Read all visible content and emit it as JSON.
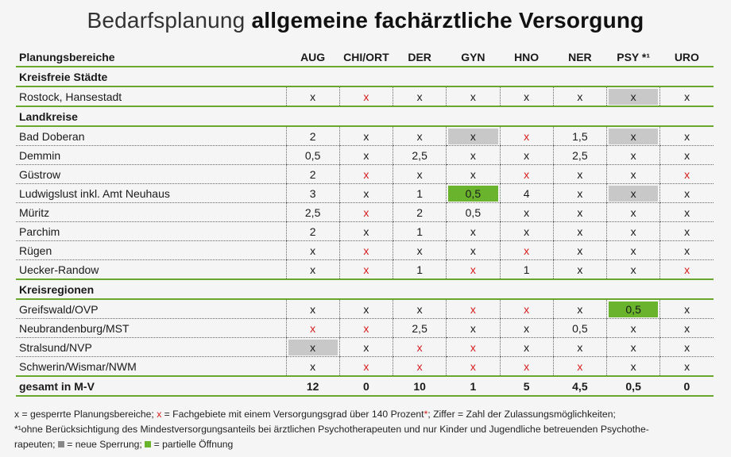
{
  "title": {
    "light": "Bedarfsplanung",
    "bold": "allgemeine fachärztliche Versorgung"
  },
  "header": {
    "first": "Planungsbereiche",
    "columns": [
      "AUG",
      "CHI/ORT",
      "DER",
      "GYN",
      "HNO",
      "NER",
      "PSY *¹",
      "URO"
    ]
  },
  "colors": {
    "green_accent": "#6aa82d",
    "highlight_green": "#6ab42d",
    "highlight_grey": "#c8c8c8",
    "red": "#d81b1b"
  },
  "sections": [
    {
      "title": "Kreisfreie Städte",
      "rows": [
        {
          "name": "Rostock, Hansestadt",
          "cells": [
            {
              "v": "x",
              "s": ""
            },
            {
              "v": "x",
              "s": "red"
            },
            {
              "v": "x",
              "s": ""
            },
            {
              "v": "x",
              "s": ""
            },
            {
              "v": "x",
              "s": ""
            },
            {
              "v": "x",
              "s": ""
            },
            {
              "v": "x",
              "s": "grey"
            },
            {
              "v": "x",
              "s": ""
            }
          ]
        }
      ]
    },
    {
      "title": "Landkreise",
      "rows": [
        {
          "name": "Bad Doberan",
          "cells": [
            {
              "v": "2",
              "s": ""
            },
            {
              "v": "x",
              "s": ""
            },
            {
              "v": "x",
              "s": ""
            },
            {
              "v": "x",
              "s": "grey"
            },
            {
              "v": "x",
              "s": "red"
            },
            {
              "v": "1,5",
              "s": ""
            },
            {
              "v": "x",
              "s": "grey"
            },
            {
              "v": "x",
              "s": ""
            }
          ]
        },
        {
          "name": "Demmin",
          "cells": [
            {
              "v": "0,5",
              "s": ""
            },
            {
              "v": "x",
              "s": ""
            },
            {
              "v": "2,5",
              "s": ""
            },
            {
              "v": "x",
              "s": ""
            },
            {
              "v": "x",
              "s": ""
            },
            {
              "v": "2,5",
              "s": ""
            },
            {
              "v": "x",
              "s": ""
            },
            {
              "v": "x",
              "s": ""
            }
          ]
        },
        {
          "name": "Güstrow",
          "cells": [
            {
              "v": "2",
              "s": ""
            },
            {
              "v": "x",
              "s": "red"
            },
            {
              "v": "x",
              "s": ""
            },
            {
              "v": "x",
              "s": ""
            },
            {
              "v": "x",
              "s": "red"
            },
            {
              "v": "x",
              "s": ""
            },
            {
              "v": "x",
              "s": ""
            },
            {
              "v": "x",
              "s": "red"
            }
          ]
        },
        {
          "name": "Ludwigslust inkl. Amt Neuhaus",
          "cells": [
            {
              "v": "3",
              "s": ""
            },
            {
              "v": "x",
              "s": ""
            },
            {
              "v": "1",
              "s": ""
            },
            {
              "v": "0,5",
              "s": "green"
            },
            {
              "v": "4",
              "s": ""
            },
            {
              "v": "x",
              "s": ""
            },
            {
              "v": "x",
              "s": "grey"
            },
            {
              "v": "x",
              "s": ""
            }
          ]
        },
        {
          "name": "Müritz",
          "cells": [
            {
              "v": "2,5",
              "s": ""
            },
            {
              "v": "x",
              "s": "red"
            },
            {
              "v": "2",
              "s": ""
            },
            {
              "v": "0,5",
              "s": ""
            },
            {
              "v": "x",
              "s": ""
            },
            {
              "v": "x",
              "s": ""
            },
            {
              "v": "x",
              "s": ""
            },
            {
              "v": "x",
              "s": ""
            }
          ]
        },
        {
          "name": "Parchim",
          "cells": [
            {
              "v": "2",
              "s": ""
            },
            {
              "v": "x",
              "s": ""
            },
            {
              "v": "1",
              "s": ""
            },
            {
              "v": "x",
              "s": ""
            },
            {
              "v": "x",
              "s": ""
            },
            {
              "v": "x",
              "s": ""
            },
            {
              "v": "x",
              "s": ""
            },
            {
              "v": "x",
              "s": ""
            }
          ]
        },
        {
          "name": "Rügen",
          "cells": [
            {
              "v": "x",
              "s": ""
            },
            {
              "v": "x",
              "s": "red"
            },
            {
              "v": "x",
              "s": ""
            },
            {
              "v": "x",
              "s": ""
            },
            {
              "v": "x",
              "s": "red"
            },
            {
              "v": "x",
              "s": ""
            },
            {
              "v": "x",
              "s": ""
            },
            {
              "v": "x",
              "s": ""
            }
          ]
        },
        {
          "name": "Uecker-Randow",
          "cells": [
            {
              "v": "x",
              "s": ""
            },
            {
              "v": "x",
              "s": "red"
            },
            {
              "v": "1",
              "s": ""
            },
            {
              "v": "x",
              "s": "red"
            },
            {
              "v": "1",
              "s": ""
            },
            {
              "v": "x",
              "s": ""
            },
            {
              "v": "x",
              "s": ""
            },
            {
              "v": "x",
              "s": "red"
            }
          ]
        }
      ]
    },
    {
      "title": "Kreisregionen",
      "rows": [
        {
          "name": "Greifswald/OVP",
          "cells": [
            {
              "v": "x",
              "s": ""
            },
            {
              "v": "x",
              "s": ""
            },
            {
              "v": "x",
              "s": ""
            },
            {
              "v": "x",
              "s": "red"
            },
            {
              "v": "x",
              "s": "red"
            },
            {
              "v": "x",
              "s": ""
            },
            {
              "v": "0,5",
              "s": "green"
            },
            {
              "v": "x",
              "s": ""
            }
          ]
        },
        {
          "name": "Neubrandenburg/MST",
          "cells": [
            {
              "v": "x",
              "s": "red"
            },
            {
              "v": "x",
              "s": "red"
            },
            {
              "v": "2,5",
              "s": ""
            },
            {
              "v": "x",
              "s": ""
            },
            {
              "v": "x",
              "s": ""
            },
            {
              "v": "0,5",
              "s": ""
            },
            {
              "v": "x",
              "s": ""
            },
            {
              "v": "x",
              "s": ""
            }
          ]
        },
        {
          "name": "Stralsund/NVP",
          "cells": [
            {
              "v": "x",
              "s": "grey"
            },
            {
              "v": "x",
              "s": ""
            },
            {
              "v": "x",
              "s": "red"
            },
            {
              "v": "x",
              "s": "red"
            },
            {
              "v": "x",
              "s": ""
            },
            {
              "v": "x",
              "s": ""
            },
            {
              "v": "x",
              "s": ""
            },
            {
              "v": "x",
              "s": ""
            }
          ]
        },
        {
          "name": "Schwerin/Wismar/NWM",
          "cells": [
            {
              "v": "x",
              "s": ""
            },
            {
              "v": "x",
              "s": "red"
            },
            {
              "v": "x",
              "s": "red"
            },
            {
              "v": "x",
              "s": "red"
            },
            {
              "v": "x",
              "s": "red"
            },
            {
              "v": "x",
              "s": "red"
            },
            {
              "v": "x",
              "s": ""
            },
            {
              "v": "x",
              "s": ""
            }
          ]
        }
      ]
    }
  ],
  "total": {
    "name": "gesamt in M-V",
    "values": [
      "12",
      "0",
      "10",
      "1",
      "5",
      "4,5",
      "0,5",
      "0"
    ]
  },
  "footer": {
    "l1_a": "x = gesperrte Planungsbereiche; ",
    "l1_red": "x",
    "l1_b": " = Fachgebiete mit einem Versorgungsgrad über 140 Prozent",
    "l1_star": "*",
    "l1_c": "; Ziffer = Zahl der Zulassungsmöglichkeiten;",
    "l2": "*¹ohne Berücksichtigung des Mindestversorgungsanteils bei ärztlichen Psychotherapeuten und nur Kinder und Jugendliche betreuenden Psychothe-",
    "l3_a": "rapeuten;",
    "l3_b": " = neue Sperrung;",
    "l3_c": " = partielle Öffnung"
  }
}
